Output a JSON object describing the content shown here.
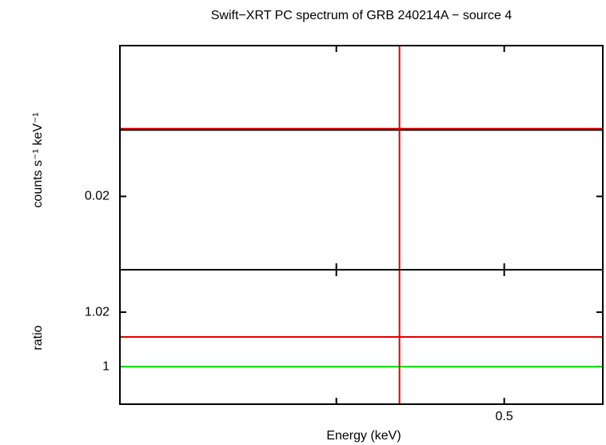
{
  "chart_data": [
    {
      "type": "scatter",
      "title": "Swift−XRT PC spectrum of GRB 240214A − source 4",
      "y_label": "counts s⁻¹ keV⁻¹",
      "xlim": [
        0.3,
        0.57
      ],
      "xscale": "log",
      "xticks": [
        0.4,
        0.5
      ],
      "ylim": [
        0.0147,
        0.0309
      ],
      "yticks": [
        0.02
      ],
      "series": [
        {
          "style": "line",
          "color": "#000000",
          "x": [
            0.3,
            0.57
          ],
          "values": [
            0.0248,
            0.0248
          ]
        },
        {
          "style": "crosshair",
          "color": "#e00000",
          "x": [
            0.435
          ],
          "values": [
            0.0249
          ]
        }
      ]
    },
    {
      "type": "scatter",
      "x_label": "Energy (keV)",
      "y_label": "ratio",
      "xlim": [
        0.3,
        0.57
      ],
      "xscale": "log",
      "xticks": [
        0.4,
        0.5
      ],
      "ylim": [
        0.9862,
        1.0356
      ],
      "yticks": [
        1,
        1.02
      ],
      "series": [
        {
          "style": "line",
          "color": "#00e000",
          "x": [
            0.3,
            0.57
          ],
          "values": [
            1,
            1
          ]
        },
        {
          "style": "crosshair",
          "color": "#e00000",
          "x": [
            0.435
          ],
          "values": [
            1.0109
          ]
        }
      ]
    }
  ]
}
